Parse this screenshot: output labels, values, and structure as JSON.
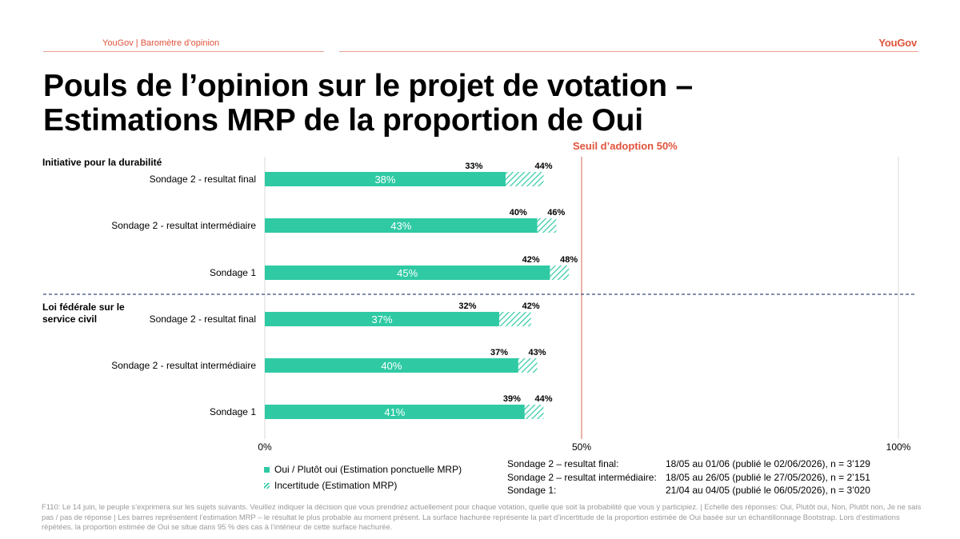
{
  "header": {
    "left": "YouGov | Baromètre d’opinion",
    "logo": "YouGov"
  },
  "title": {
    "line1": "Pouls de l’opinion sur le projet de votation –",
    "line2": "Estimations MRP de la proportion de Oui"
  },
  "colors": {
    "accent": "#e0533b",
    "bar": "#2fcaa4",
    "hatch": "#2fcaa4",
    "divider": "#3a4a7a"
  },
  "chart_data": {
    "type": "bar",
    "orientation": "horizontal",
    "threshold": {
      "label": "Seuil d’adoption 50%",
      "value": 50
    },
    "xlim": [
      0,
      100
    ],
    "xticks": [
      {
        "value": 0,
        "label": "0%"
      },
      {
        "value": 50,
        "label": "50%"
      },
      {
        "value": 100,
        "label": "100%"
      }
    ],
    "groups": [
      {
        "label": "Initiative pour la durabilité",
        "rows": [
          {
            "category": "Sondage 2 - resultat final",
            "value": 38,
            "low": 33,
            "high": 44,
            "value_label": "38%",
            "low_label": "33%",
            "high_label": "44%"
          },
          {
            "category": "Sondage 2 - resultat intermédiaire",
            "value": 43,
            "low": 40,
            "high": 46,
            "value_label": "43%",
            "low_label": "40%",
            "high_label": "46%"
          },
          {
            "category": "Sondage 1",
            "value": 45,
            "low": 42,
            "high": 48,
            "value_label": "45%",
            "low_label": "42%",
            "high_label": "48%"
          }
        ]
      },
      {
        "label": "Loi fédérale sur le service civil",
        "label_lines": [
          "Loi fédérale sur le",
          "service civil"
        ],
        "rows": [
          {
            "category": "Sondage 2 - resultat final",
            "value": 37,
            "low": 32,
            "high": 42,
            "value_label": "37%",
            "low_label": "32%",
            "high_label": "42%"
          },
          {
            "category": "Sondage 2 - resultat intermédiaire",
            "value": 40,
            "low": 37,
            "high": 43,
            "value_label": "40%",
            "low_label": "37%",
            "high_label": "43%"
          },
          {
            "category": "Sondage 1",
            "value": 41,
            "low": 39,
            "high": 44,
            "value_label": "41%",
            "low_label": "39%",
            "high_label": "44%"
          }
        ]
      }
    ],
    "legend": [
      {
        "label": "Oui / Plutôt oui (Estimation ponctuelle MRP)",
        "style": "solid"
      },
      {
        "label": "Incertitude (Estimation MRP)",
        "style": "hatched"
      }
    ]
  },
  "survey_table": [
    {
      "name": "Sondage 2 – resultat final:",
      "details": "18/05 au 01/06 (publié le 02/06/2026), n = 3’129"
    },
    {
      "name": "Sondage 2 – resultat intermédiaire:",
      "details": "18/05 au 26/05 (publié le 27/05/2026), n = 2’151"
    },
    {
      "name": "Sondage 1:",
      "details": "21/04 au 04/05 (publié le 06/05/2026), n = 3’020"
    }
  ],
  "footnote": "F110: Le 14 juin, le peuple s’exprimera sur les sujets suivants. Veuillez indiquer la décision que vous prendriez actuellement pour chaque votation, quelle que soit la probabilité que vous y participiez. | Echelle des réponses: Oui, Plutôt oui, Non, Plutôt non, Je ne sais pas / pas de réponse | Les barres représentent l’estimation MRP – le résultat le plus probable au moment présent. La surface hachurée représente la part d’incertitude de la proportion estimée de Oui basée sur un échantillonnage Bootstrap. Lors d’estimations répétées, la proportion estimée de Oui se situe dans 95 % des cas à l’intérieur de cette surface hachurée."
}
